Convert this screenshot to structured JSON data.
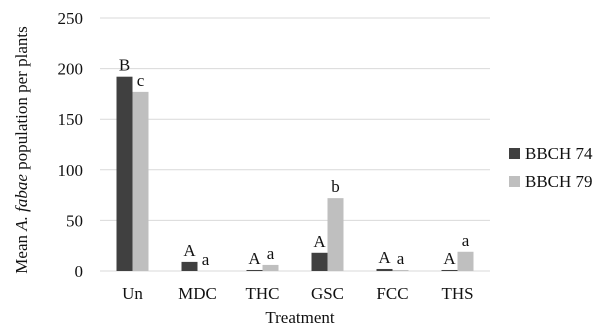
{
  "chart_data": {
    "type": "bar",
    "title": "",
    "xlabel": "Treatment",
    "ylabel_prefix": "Mean ",
    "ylabel_species": "A. fabae",
    "ylabel_suffix": " population per plants",
    "ylim": [
      0,
      250
    ],
    "yticks": [
      0,
      50,
      100,
      150,
      200,
      250
    ],
    "yticks_labels": [
      "0",
      "50",
      "100",
      "150",
      "200",
      "250"
    ],
    "grid": true,
    "legend_position": "right",
    "categories": [
      "Un",
      "MDC",
      "THC",
      "GSC",
      "FCC",
      "THS"
    ],
    "series": [
      {
        "name": "BBCH 74",
        "color": "#404040",
        "values": [
          192,
          9,
          1,
          18,
          2,
          1
        ],
        "labels": [
          "B",
          "A",
          "A",
          "A",
          "A",
          "A"
        ]
      },
      {
        "name": "BBCH 79",
        "color": "#bfbfbf",
        "values": [
          177,
          0,
          6,
          72,
          1,
          19
        ],
        "labels": [
          "c",
          "a",
          "a",
          "b",
          "a",
          "a"
        ]
      }
    ]
  }
}
